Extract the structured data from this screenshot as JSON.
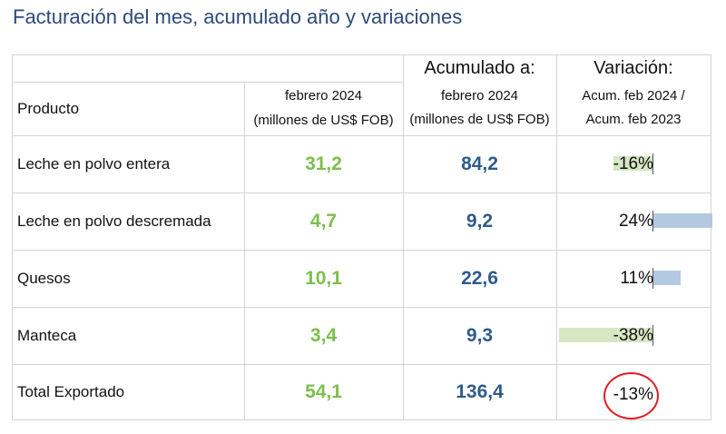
{
  "title": "Facturación del mes, acumulado año y variaciones",
  "header": {
    "producto": "Producto",
    "mes_line1": "febrero 2024",
    "mes_line2": "(millones de US$ FOB)",
    "acum_title": "Acumulado a:",
    "acum_line1": "febrero 2024",
    "acum_line2": "(millones de US$ FOB)",
    "var_title": "Variación:",
    "var_line1": "Acum. feb 2024 /",
    "var_line2": "Acum. feb 2023"
  },
  "rows": [
    {
      "producto": "Leche en polvo entera",
      "mes": "31,2",
      "acum": "84,2",
      "variacion": "-16%",
      "variacion_value": -16
    },
    {
      "producto": "Leche en polvo descremada",
      "mes": "4,7",
      "acum": "9,2",
      "variacion": "24%",
      "variacion_value": 24
    },
    {
      "producto": "Quesos",
      "mes": "10,1",
      "acum": "22,6",
      "variacion": "11%",
      "variacion_value": 11
    },
    {
      "producto": "Manteca",
      "mes": "3,4",
      "acum": "9,3",
      "variacion": "-38%",
      "variacion_value": -38
    }
  ],
  "total": {
    "producto": "Total Exportado",
    "mes": "54,1",
    "acum": "136,4",
    "variacion": "-13%"
  },
  "colors": {
    "title": "#2c4a7a",
    "green": "#7cbf4b",
    "blue": "#2e5b8a",
    "bar_negative": "#d7e6c3",
    "bar_positive": "#b3c9e2",
    "circle": "#e01e24"
  }
}
